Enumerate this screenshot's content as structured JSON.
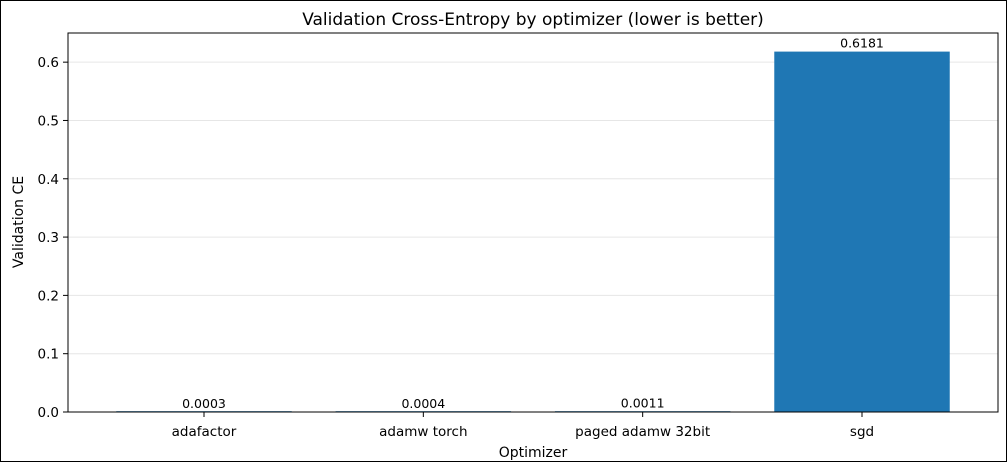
{
  "chart_data": {
    "type": "bar",
    "title": "Validation Cross-Entropy by optimizer (lower is better)",
    "xlabel": "Optimizer",
    "ylabel": "Validation CE",
    "categories": [
      "adafactor",
      "adamw torch",
      "paged adamw 32bit",
      "sgd"
    ],
    "values": [
      0.0003,
      0.0004,
      0.0011,
      0.6181
    ],
    "value_labels": [
      "0.0003",
      "0.0004",
      "0.0011",
      "0.6181"
    ],
    "ylim": [
      0,
      0.65
    ],
    "yticks": [
      0.0,
      0.1,
      0.2,
      0.3,
      0.4,
      0.5,
      0.6
    ],
    "ytick_labels": [
      "0.0",
      "0.1",
      "0.2",
      "0.3",
      "0.4",
      "0.5",
      "0.6"
    ],
    "grid": "y",
    "bar_color": "#1f77b4"
  }
}
